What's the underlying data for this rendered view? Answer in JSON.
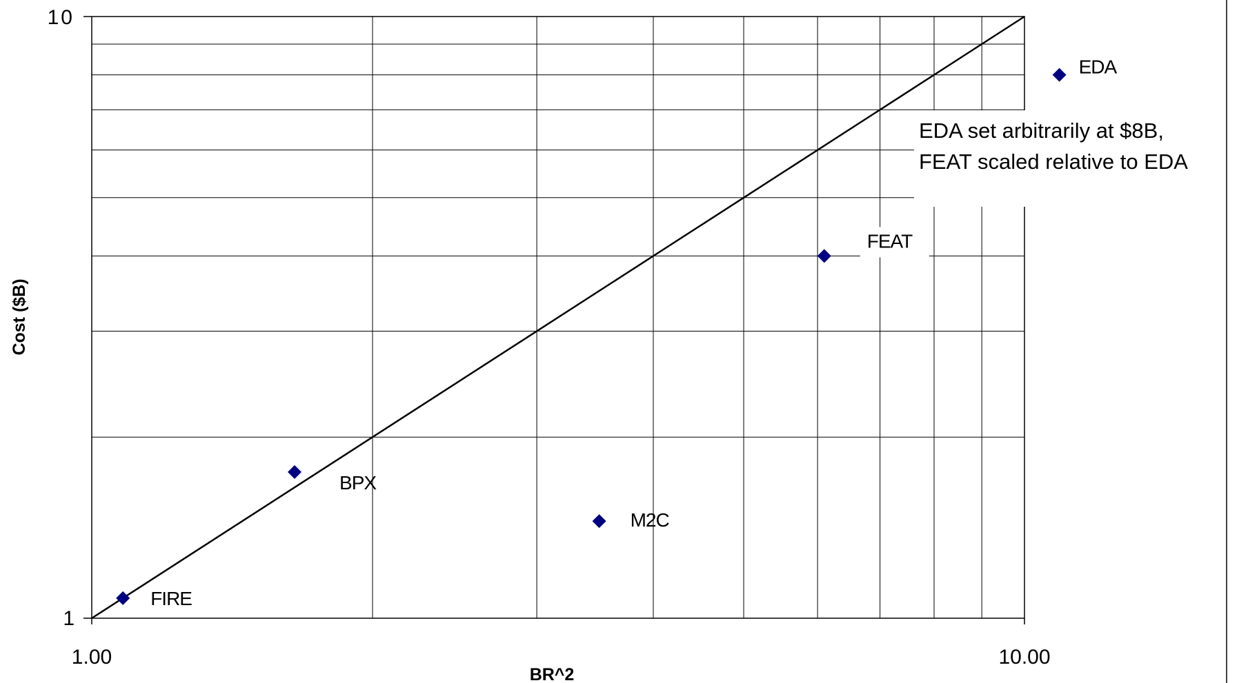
{
  "chart_data": {
    "type": "scatter",
    "title": "",
    "xlabel": "BR^2",
    "ylabel": "Cost ($B)",
    "x_scale": "log",
    "y_scale": "log",
    "xlim": [
      1,
      10
    ],
    "ylim": [
      1,
      10
    ],
    "x_ticks": [
      {
        "value": 1,
        "label": "1.00"
      },
      {
        "value": 10,
        "label": "10.00"
      }
    ],
    "y_ticks": [
      {
        "value": 1,
        "label": "1"
      },
      {
        "value": 10,
        "label": "10"
      }
    ],
    "grid": true,
    "marker_color": "#000080",
    "points": [
      {
        "name": "FIRE",
        "x": 1.08,
        "y": 1.08
      },
      {
        "name": "BPX",
        "x": 1.65,
        "y": 1.75
      },
      {
        "name": "M2C",
        "x": 3.5,
        "y": 1.45
      },
      {
        "name": "FEAT",
        "x": 6.1,
        "y": 4.0
      },
      {
        "name": "EDA",
        "x": 10.9,
        "y": 8.0
      }
    ],
    "reference_line": {
      "from": [
        1,
        1
      ],
      "to": [
        10,
        10
      ]
    },
    "annotation": {
      "lines": [
        "EDA set arbitrarily at $8B,",
        "FEAT scaled relative to EDA"
      ]
    }
  }
}
